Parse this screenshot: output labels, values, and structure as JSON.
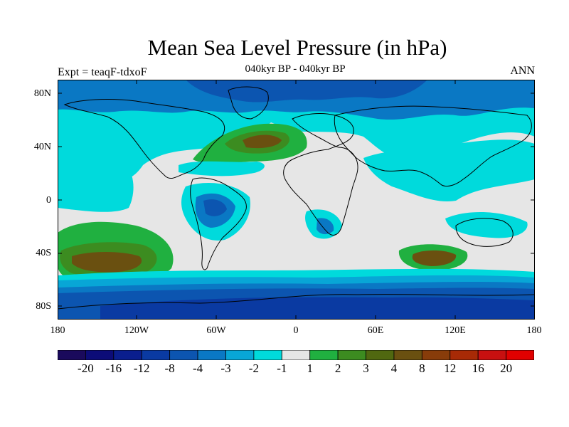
{
  "title": "Mean Sea Level Pressure (in hPa)",
  "subtitle": "040kyr BP - 040kyr BP",
  "expt": "Expt = teaqF-tdxoF",
  "season": "ANN",
  "lat_labels": [
    "80N",
    "40N",
    "0",
    "40S",
    "80S"
  ],
  "lon_labels": [
    "180",
    "120W",
    "60W",
    "0",
    "60E",
    "120E",
    "180"
  ],
  "colorbar": {
    "labels": [
      "-20",
      "-16",
      "-12",
      "-8",
      "-4",
      "-3",
      "-2",
      "-1",
      "1",
      "2",
      "3",
      "4",
      "8",
      "12",
      "16",
      "20"
    ],
    "colors": [
      "#1a0a5c",
      "#0c0c78",
      "#0a1e8e",
      "#0a3aa2",
      "#0c55b0",
      "#0a78c4",
      "#08a6d6",
      "#00dadc",
      "#e6e6e6",
      "#20b040",
      "#3c8c20",
      "#506810",
      "#6a5010",
      "#883c0a",
      "#a82a06",
      "#c81010",
      "#e00000"
    ]
  },
  "colors": {
    "land_outline": "#000000",
    "neutral": "#e6e6e6",
    "negative_weak": "#00dadc",
    "negative_strong": "#0a3aa2",
    "positive_weak": "#20b040",
    "positive_strong": "#883c0a"
  }
}
